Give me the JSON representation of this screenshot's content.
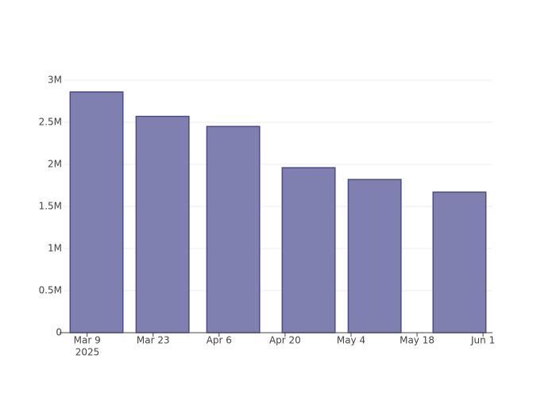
{
  "chart_data": {
    "type": "bar",
    "x": [
      "2025-03-11",
      "2025-03-25",
      "2025-04-09",
      "2025-04-25",
      "2025-05-09",
      "2025-05-27"
    ],
    "values": [
      2860000,
      2570000,
      2450000,
      1960000,
      1820000,
      1670000
    ],
    "color": "#7f7fb0",
    "edge_color": "#4b4b8c",
    "xlim": [
      "2025-03-04",
      "2025-06-03"
    ],
    "xticks": [
      {
        "value": "2025-03-09",
        "label": "Mar 9"
      },
      {
        "value": "2025-03-23",
        "label": "Mar 23"
      },
      {
        "value": "2025-04-06",
        "label": "Apr 6"
      },
      {
        "value": "2025-04-20",
        "label": "Apr 20"
      },
      {
        "value": "2025-05-04",
        "label": "May 4"
      },
      {
        "value": "2025-05-18",
        "label": "May 18"
      },
      {
        "value": "2025-06-01",
        "label": "Jun 1"
      }
    ],
    "x_year_label": "2025",
    "ylim": [
      0,
      3000000
    ],
    "yticks": [
      0,
      {
        "value": 500000,
        "label": "0.5M"
      },
      {
        "value": 1000000,
        "label": "1M"
      },
      {
        "value": 1500000,
        "label": "1.5M"
      },
      {
        "value": 2000000,
        "label": "2M"
      },
      {
        "value": 2500000,
        "label": "2.5M"
      },
      {
        "value": 3000000,
        "label": "3M"
      }
    ],
    "grid": true
  }
}
